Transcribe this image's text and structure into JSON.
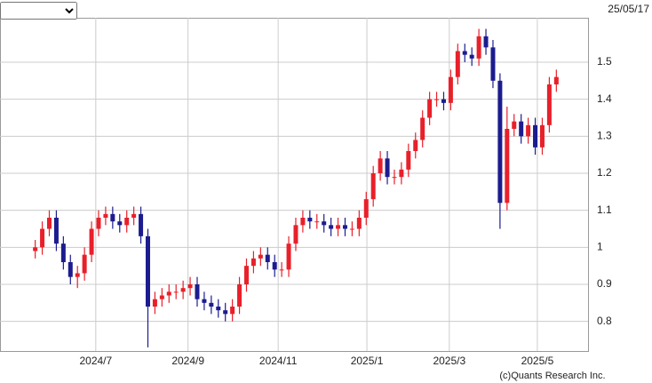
{
  "date": "25/05/17",
  "copyright": "(c)Quants Research Inc.",
  "chart_data": {
    "type": "candlestick",
    "series": [
      {
        "up_color": "#e8202a",
        "down_color": "#1c1c8f",
        "open": [
          0.99,
          1.0,
          1.05,
          1.08,
          1.01,
          0.96,
          0.92,
          0.93,
          0.98,
          1.05,
          1.08,
          1.09,
          1.07,
          1.06,
          1.08,
          1.09,
          1.03,
          0.84,
          0.86,
          0.87,
          0.88,
          0.88,
          0.89,
          0.9,
          0.86,
          0.85,
          0.84,
          0.83,
          0.82,
          0.84,
          0.9,
          0.95,
          0.97,
          0.98,
          0.96,
          0.94,
          0.94,
          1.01,
          1.06,
          1.08,
          1.07,
          1.07,
          1.06,
          1.05,
          1.06,
          1.05,
          1.05,
          1.08,
          1.13,
          1.2,
          1.24,
          1.19,
          1.19,
          1.21,
          1.26,
          1.29,
          1.35,
          1.4,
          1.4,
          1.39,
          1.46,
          1.53,
          1.52,
          1.51,
          1.57,
          1.54,
          1.45,
          1.12,
          1.32,
          1.34,
          1.3,
          1.33,
          1.27,
          1.33,
          1.44
        ],
        "high": [
          1.02,
          1.07,
          1.1,
          1.1,
          1.03,
          0.98,
          0.95,
          1.0,
          1.07,
          1.1,
          1.11,
          1.11,
          1.09,
          1.1,
          1.11,
          1.11,
          1.05,
          0.88,
          0.89,
          0.9,
          0.9,
          0.91,
          0.92,
          0.92,
          0.88,
          0.87,
          0.86,
          0.85,
          0.86,
          0.92,
          0.97,
          0.99,
          1.0,
          1.0,
          0.98,
          0.96,
          1.03,
          1.08,
          1.1,
          1.1,
          1.09,
          1.09,
          1.08,
          1.08,
          1.08,
          1.07,
          1.1,
          1.15,
          1.22,
          1.26,
          1.26,
          1.21,
          1.23,
          1.28,
          1.31,
          1.37,
          1.42,
          1.42,
          1.42,
          1.48,
          1.55,
          1.55,
          1.54,
          1.59,
          1.59,
          1.56,
          1.47,
          1.38,
          1.36,
          1.36,
          1.35,
          1.35,
          1.35,
          1.46,
          1.48
        ],
        "low": [
          0.97,
          0.98,
          1.03,
          0.99,
          0.94,
          0.9,
          0.89,
          0.91,
          0.96,
          1.03,
          1.06,
          1.05,
          1.04,
          1.04,
          1.06,
          1.01,
          0.73,
          0.82,
          0.84,
          0.85,
          0.86,
          0.86,
          0.87,
          0.84,
          0.83,
          0.82,
          0.81,
          0.8,
          0.8,
          0.82,
          0.88,
          0.93,
          0.95,
          0.94,
          0.92,
          0.92,
          0.92,
          0.99,
          1.04,
          1.05,
          1.05,
          1.04,
          1.03,
          1.03,
          1.03,
          1.03,
          1.03,
          1.06,
          1.11,
          1.18,
          1.17,
          1.17,
          1.17,
          1.19,
          1.24,
          1.27,
          1.33,
          1.38,
          1.37,
          1.37,
          1.44,
          1.5,
          1.49,
          1.49,
          1.52,
          1.43,
          1.05,
          1.1,
          1.3,
          1.28,
          1.28,
          1.25,
          1.25,
          1.31,
          1.42
        ],
        "close": [
          1.0,
          1.05,
          1.08,
          1.01,
          0.96,
          0.92,
          0.93,
          0.98,
          1.05,
          1.08,
          1.09,
          1.07,
          1.06,
          1.08,
          1.09,
          1.03,
          0.84,
          0.86,
          0.87,
          0.88,
          0.88,
          0.89,
          0.9,
          0.86,
          0.85,
          0.84,
          0.83,
          0.82,
          0.84,
          0.9,
          0.95,
          0.97,
          0.98,
          0.96,
          0.94,
          0.94,
          1.01,
          1.06,
          1.08,
          1.07,
          1.07,
          1.06,
          1.05,
          1.06,
          1.05,
          1.05,
          1.08,
          1.13,
          1.2,
          1.24,
          1.19,
          1.19,
          1.21,
          1.26,
          1.29,
          1.35,
          1.4,
          1.4,
          1.39,
          1.46,
          1.53,
          1.52,
          1.51,
          1.57,
          1.54,
          1.45,
          1.12,
          1.32,
          1.34,
          1.3,
          1.33,
          1.27,
          1.33,
          1.44,
          1.46
        ]
      }
    ],
    "xlim": [
      -5,
      78.5
    ],
    "xticks": [
      {
        "value": 8.6,
        "label": "2024/7"
      },
      {
        "value": 21.7,
        "label": "2024/9"
      },
      {
        "value": 34.5,
        "label": "2024/11"
      },
      {
        "value": 47.1,
        "label": "2025/1"
      },
      {
        "value": 58.8,
        "label": "2025/3"
      },
      {
        "value": 71.3,
        "label": "2025/5"
      }
    ],
    "ylim": [
      0.72,
      1.62
    ],
    "yticks": [
      0.8,
      0.9,
      1.0,
      1.1,
      1.2,
      1.3,
      1.4,
      1.5
    ],
    "grid": true
  }
}
